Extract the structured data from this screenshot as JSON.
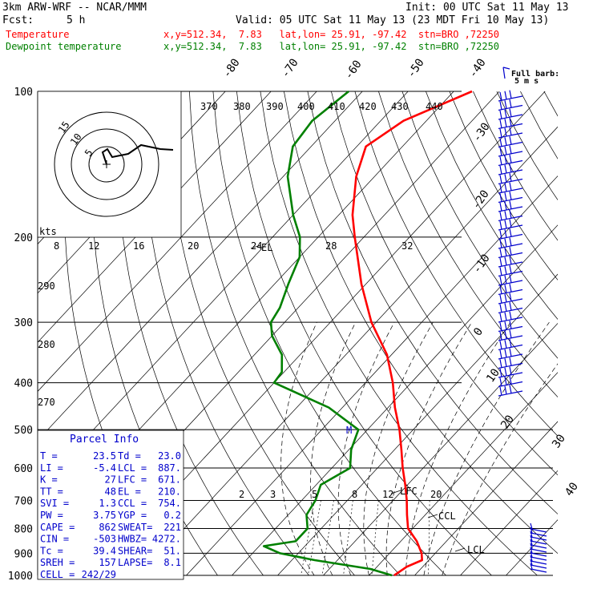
{
  "header": {
    "model": "3km ARW-WRF -- NCAR/MMM",
    "init": "Init: 00 UTC Sat 11 May 13",
    "fcst_label": "Fcst:",
    "fcst_value": "5 h",
    "valid": "Valid: 05 UTC Sat 11 May 13 (23 MDT Fri 10 May 13)",
    "temp_label": "Temperature",
    "temp_info": "x,y=512.34,  7.83   lat,lon= 25.91, -97.42  stn=BRO ,72250",
    "dew_label": "Dewpoint temperature",
    "dew_info": "x,y=512.34,  7.83   lat,lon= 25.91, -97.42  stn=BRO ,72250",
    "colors": {
      "temperature": "#ff0000",
      "dewpoint": "#008000",
      "parcel_title": "#0000cc",
      "barbs": "#0000cc"
    }
  },
  "barb_legend": {
    "line1": "Full barb:",
    "line2": "5 m s"
  },
  "hodograph": {
    "units": "kts",
    "rings": [
      "5",
      "10",
      "15"
    ]
  },
  "parcel_info": {
    "title": "Parcel Info",
    "rows": [
      [
        "T   =",
        "23.5",
        "Td  =",
        "23.0"
      ],
      [
        "LI  =",
        "-5.4",
        "LCL =",
        "887."
      ],
      [
        "K   =",
        "27",
        "LFC =",
        "671."
      ],
      [
        "TT  =",
        "48",
        "EL  =",
        "210."
      ],
      [
        "SVI =",
        "1.3",
        "CCL =",
        "754."
      ],
      [
        "PW  =",
        "3.75",
        "YGP =",
        "0.2"
      ],
      [
        "CAPE =",
        "862",
        "SWEAT=",
        "221"
      ],
      [
        "CIN  =",
        "-503",
        "HWBZ=",
        "4272."
      ],
      [
        "Tc   =",
        "39.4",
        "SHEAR=",
        "51."
      ],
      [
        "SREH =",
        "157",
        "LAPSE=",
        "8.1"
      ],
      [
        "CELL =",
        "242/29",
        "",
        ""
      ]
    ]
  },
  "chart_data": {
    "type": "line",
    "title": "",
    "pressure_ticks": [
      100,
      200,
      300,
      400,
      500,
      600,
      700,
      800,
      900,
      1000
    ],
    "isotherm_top_labels": [
      "-80",
      "-70",
      "-60",
      "-50",
      "-40"
    ],
    "isotherm_right_labels": [
      "-30",
      "-20",
      "-10",
      "0",
      "10",
      "20",
      "30",
      "40"
    ],
    "theta_labels": [
      "370",
      "380",
      "390",
      "400",
      "410",
      "420",
      "430",
      "440"
    ],
    "theta_left_labels": [
      "290",
      "280",
      "270"
    ],
    "mixing_ratio_top_labels": [
      "8",
      "12",
      "16",
      "20",
      "24",
      "28",
      "32"
    ],
    "mixing_ratio_low_labels": [
      "2",
      "3",
      "5",
      "8",
      "12",
      "20"
    ],
    "level_labels": [
      "EL",
      "LFC",
      "CCL",
      "LCL",
      "M"
    ],
    "series": [
      {
        "name": "Temperature",
        "color": "#ff0000",
        "points": [
          [
            1000,
            25.5
          ],
          [
            960,
            26.5
          ],
          [
            930,
            28.5
          ],
          [
            900,
            27.0
          ],
          [
            850,
            23.5
          ],
          [
            800,
            19.0
          ],
          [
            750,
            16.0
          ],
          [
            700,
            13.0
          ],
          [
            650,
            9.5
          ],
          [
            600,
            5.5
          ],
          [
            550,
            1.5
          ],
          [
            500,
            -3.0
          ],
          [
            450,
            -8.5
          ],
          [
            400,
            -14.0
          ],
          [
            350,
            -21.0
          ],
          [
            300,
            -31.0
          ],
          [
            250,
            -41.0
          ],
          [
            200,
            -52.0
          ],
          [
            180,
            -57.0
          ],
          [
            150,
            -64.0
          ],
          [
            130,
            -68.0
          ],
          [
            115,
            -65.0
          ],
          [
            100,
            -56.0
          ]
        ]
      },
      {
        "name": "Dewpoint temperature",
        "color": "#008000",
        "points": [
          [
            1000,
            25.0
          ],
          [
            970,
            19.0
          ],
          [
            930,
            5.0
          ],
          [
            900,
            -4.0
          ],
          [
            870,
            -9.0
          ],
          [
            850,
            -3.0
          ],
          [
            800,
            -3.0
          ],
          [
            750,
            -6.0
          ],
          [
            700,
            -7.0
          ],
          [
            650,
            -9.0
          ],
          [
            600,
            -6.0
          ],
          [
            550,
            -9.5
          ],
          [
            500,
            -12.0
          ],
          [
            450,
            -23.0
          ],
          [
            400,
            -40.0
          ],
          [
            380,
            -40.5
          ],
          [
            350,
            -44.0
          ],
          [
            320,
            -50.0
          ],
          [
            300,
            -53.0
          ],
          [
            280,
            -54.0
          ],
          [
            250,
            -57.0
          ],
          [
            220,
            -60.0
          ],
          [
            200,
            -64.0
          ],
          [
            180,
            -70.0
          ],
          [
            150,
            -79.0
          ],
          [
            130,
            -84.0
          ],
          [
            115,
            -85.0
          ],
          [
            100,
            -83.0
          ]
        ]
      }
    ],
    "x_range_degC": [
      -85,
      45
    ],
    "y_range_hPa": [
      100,
      1000
    ],
    "grid": true
  }
}
